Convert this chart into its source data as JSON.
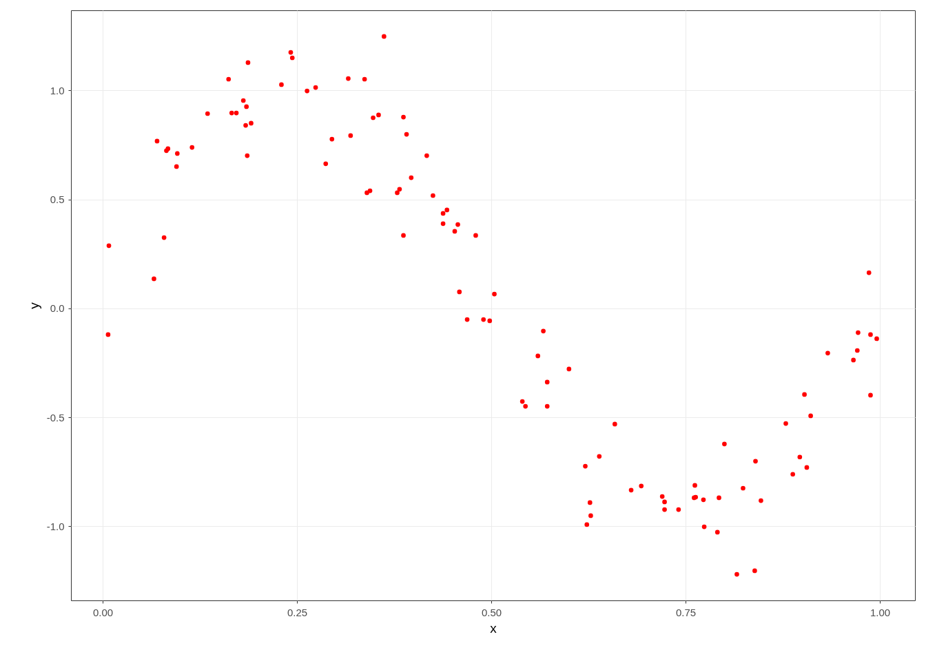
{
  "chart_data": {
    "type": "scatter",
    "xlabel": "x",
    "ylabel": "y",
    "marker": "circle",
    "grid": true,
    "xlim": [
      -0.0408,
      1.0452
    ],
    "ylim": [
      -1.34,
      1.368
    ],
    "xticks": [
      {
        "value": 0,
        "label": "0.00"
      },
      {
        "value": 0.25,
        "label": "0.25"
      },
      {
        "value": 0.5,
        "label": "0.50"
      },
      {
        "value": 0.75,
        "label": "0.75"
      },
      {
        "value": 1,
        "label": "1.00"
      }
    ],
    "yticks": [
      {
        "value": -1,
        "label": "-1.0"
      },
      {
        "value": -0.5,
        "label": "-0.5"
      },
      {
        "value": 0,
        "label": "0.0"
      },
      {
        "value": 0.5,
        "label": "0.5"
      },
      {
        "value": 1,
        "label": "1.0"
      }
    ],
    "series": [
      {
        "color": "#ff0000",
        "x": [
          0.008,
          0.007,
          0.066,
          0.07,
          0.079,
          0.082,
          0.084,
          0.095,
          0.096,
          0.115,
          0.135,
          0.162,
          0.166,
          0.172,
          0.181,
          0.185,
          0.184,
          0.186,
          0.187,
          0.191,
          0.23,
          0.242,
          0.244,
          0.263,
          0.274,
          0.287,
          0.295,
          0.316,
          0.319,
          0.337,
          0.34,
          0.344,
          0.348,
          0.355,
          0.362,
          0.379,
          0.382,
          0.387,
          0.387,
          0.391,
          0.397,
          0.417,
          0.425,
          0.438,
          0.438,
          0.443,
          0.453,
          0.457,
          0.459,
          0.469,
          0.48,
          0.49,
          0.498,
          0.504,
          0.54,
          0.544,
          0.56,
          0.567,
          0.572,
          0.572,
          0.6,
          0.621,
          0.623,
          0.627,
          0.628,
          0.639,
          0.659,
          0.68,
          0.693,
          0.72,
          0.723,
          0.723,
          0.741,
          0.761,
          0.762,
          0.763,
          0.773,
          0.774,
          0.791,
          0.793,
          0.8,
          0.816,
          0.824,
          0.839,
          0.84,
          0.847,
          0.879,
          0.888,
          0.897,
          0.903,
          0.906,
          0.911,
          0.933,
          0.966,
          0.971,
          0.972,
          0.986,
          0.988,
          0.988,
          0.996
        ],
        "values": [
          0.288,
          -0.12,
          0.136,
          0.768,
          0.325,
          0.724,
          0.733,
          0.651,
          0.711,
          0.739,
          0.894,
          1.052,
          0.897,
          0.897,
          0.954,
          0.926,
          0.84,
          0.701,
          1.128,
          0.85,
          1.027,
          1.175,
          1.15,
          0.998,
          1.014,
          0.664,
          0.777,
          1.055,
          0.793,
          1.052,
          0.531,
          0.54,
          0.875,
          0.888,
          1.248,
          0.531,
          0.547,
          0.335,
          0.878,
          0.799,
          0.6,
          0.701,
          0.518,
          0.436,
          0.389,
          0.452,
          0.354,
          0.385,
          0.076,
          -0.051,
          0.335,
          -0.051,
          -0.057,
          0.066,
          -0.427,
          -0.449,
          -0.218,
          -0.104,
          -0.338,
          -0.449,
          -0.278,
          -0.724,
          -0.992,
          -0.891,
          -0.951,
          -0.679,
          -0.531,
          -0.834,
          -0.815,
          -0.863,
          -0.888,
          -0.923,
          -0.923,
          -0.869,
          -0.812,
          -0.866,
          -0.878,
          -1.002,
          -1.027,
          -0.869,
          -0.622,
          -1.22,
          -0.825,
          -1.204,
          -0.701,
          -0.882,
          -0.528,
          -0.761,
          -0.682,
          -0.395,
          -0.73,
          -0.493,
          -0.205,
          -0.237,
          -0.193,
          -0.111,
          0.164,
          -0.12,
          -0.398,
          -0.139
        ]
      }
    ]
  }
}
